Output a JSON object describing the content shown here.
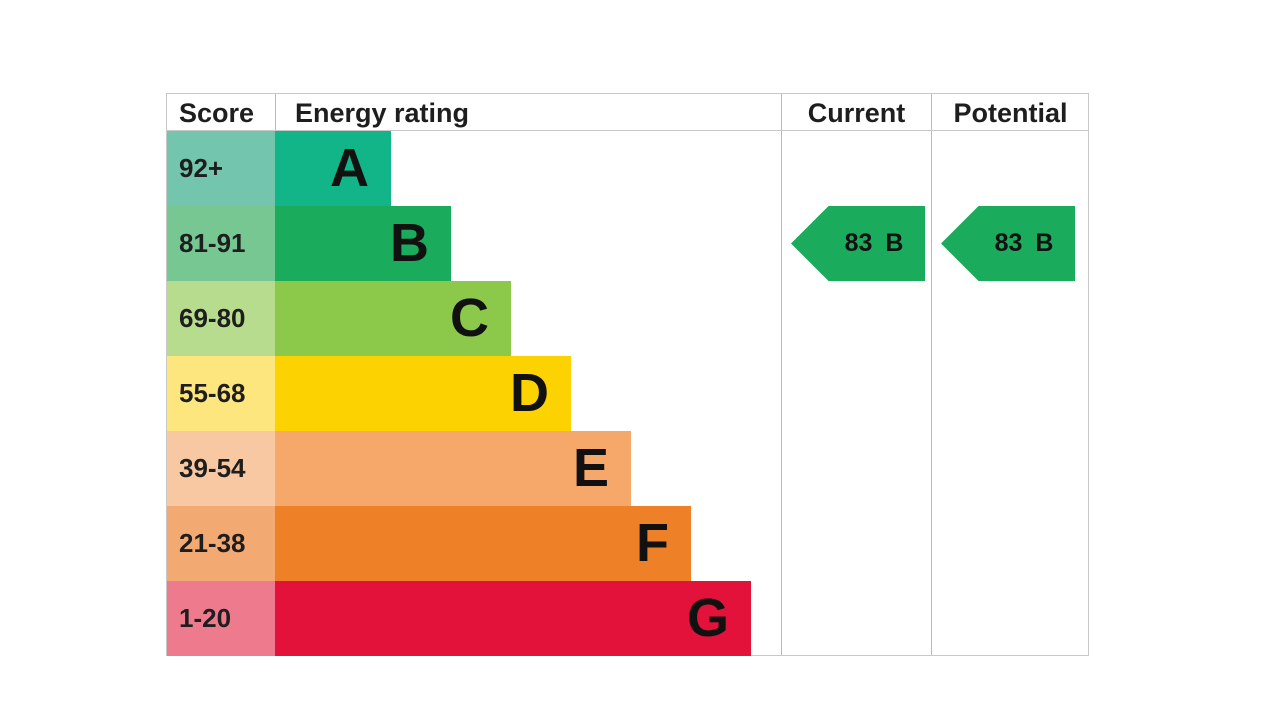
{
  "chart_data": {
    "type": "bar",
    "headers": {
      "score": "Score",
      "rating": "Energy rating",
      "current": "Current",
      "potential": "Potential"
    },
    "bands": [
      {
        "letter": "A",
        "score": "92+",
        "color": "#12b587",
        "score_color": "#73c6ad"
      },
      {
        "letter": "B",
        "score": "81-91",
        "color": "#1aab5c",
        "score_color": "#77c793"
      },
      {
        "letter": "C",
        "score": "69-80",
        "color": "#8cc84a",
        "score_color": "#b8dc8e"
      },
      {
        "letter": "D",
        "score": "55-68",
        "color": "#fcd200",
        "score_color": "#fde67d"
      },
      {
        "letter": "E",
        "score": "39-54",
        "color": "#f6a86a",
        "score_color": "#f8c8a3"
      },
      {
        "letter": "F",
        "score": "21-38",
        "color": "#ee8127",
        "score_color": "#f2aa72"
      },
      {
        "letter": "G",
        "score": "1-20",
        "color": "#e2123a",
        "score_color": "#ee7b8d"
      }
    ],
    "current": {
      "value": 83,
      "band": "B",
      "color": "#1aab5c"
    },
    "potential": {
      "value": 83,
      "band": "B",
      "color": "#1aab5c"
    }
  }
}
